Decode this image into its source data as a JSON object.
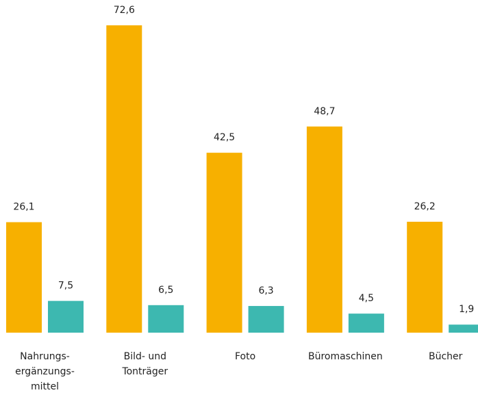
{
  "chart_data": {
    "type": "bar",
    "categories": [
      "Nahrungs-\nergänzungs-\nmittel",
      "Bild- und\nTonträger",
      "Foto",
      "Büromaschinen",
      "Bücher"
    ],
    "series": [
      {
        "color": "#f7b000",
        "values": [
          26.1,
          72.6,
          42.5,
          48.7,
          26.2
        ],
        "value_labels": [
          "26,1",
          "72,6",
          "42,5",
          "48,7",
          "26,2"
        ]
      },
      {
        "color": "#3db8b0",
        "values": [
          7.5,
          6.5,
          6.3,
          4.5,
          1.9
        ],
        "value_labels": [
          "7,5",
          "6,5",
          "6,3",
          "4,5",
          "1,9"
        ]
      }
    ]
  }
}
